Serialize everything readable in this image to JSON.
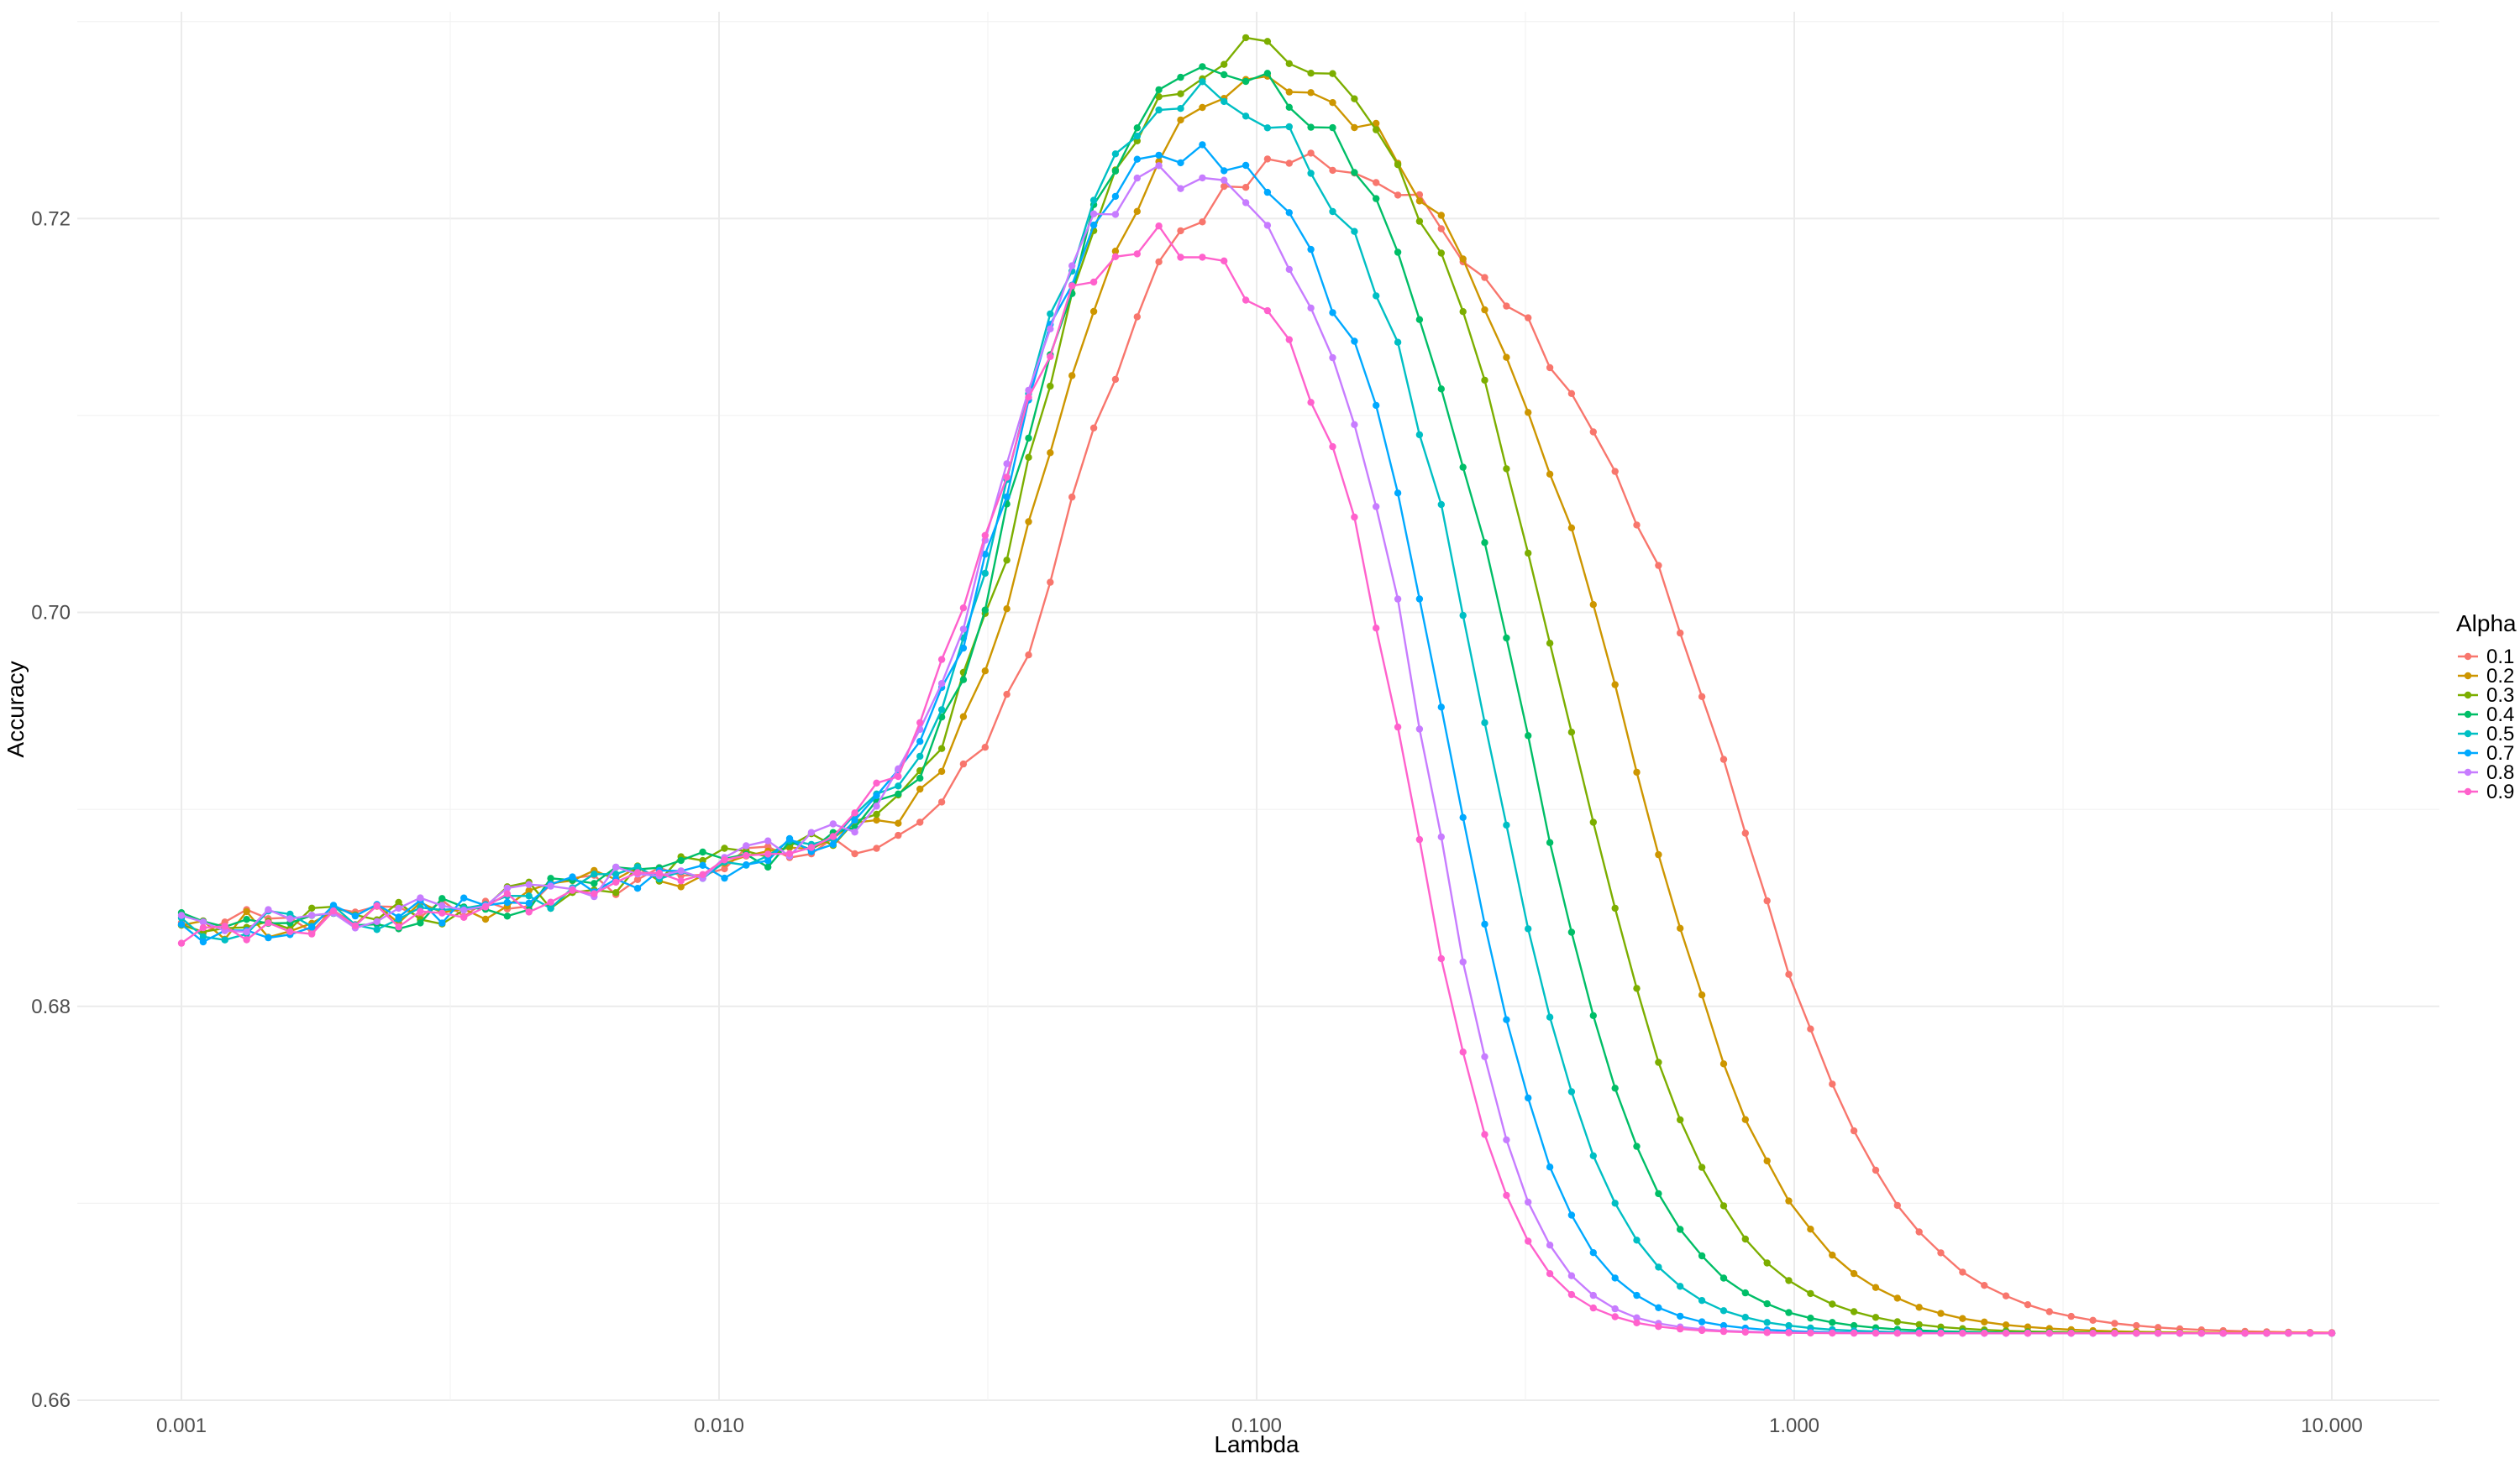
{
  "chart_data": {
    "type": "line",
    "title": "",
    "xlabel": "Lambda",
    "ylabel": "Accuracy",
    "x_scale": "log10",
    "xlim": [
      0.001,
      10
    ],
    "ylim": [
      0.66,
      0.7305
    ],
    "x_ticks": [
      0.001,
      0.01,
      0.1,
      1,
      10
    ],
    "x_tick_labels": [
      "0.001",
      "0.010",
      "0.100",
      "1.000",
      "10.000"
    ],
    "y_ticks": [
      0.66,
      0.68,
      0.7,
      0.72
    ],
    "y_tick_labels": [
      "0.66",
      "0.68",
      "0.70",
      "0.72"
    ],
    "grid": true,
    "legend": {
      "title": "Alpha",
      "position": "right"
    },
    "x_count": 100,
    "series": [
      {
        "name": "0.1",
        "color": "#F8766D",
        "peak": 0.7235,
        "peak_x": 0.12,
        "rise_mid": 0.043,
        "drop_mid": 0.8,
        "drop_width": 0.15
      },
      {
        "name": "0.2",
        "color": "#CD9600",
        "peak": 0.7275,
        "peak_x": 0.11,
        "rise_mid": 0.038,
        "drop_mid": 0.52,
        "drop_width": 0.14
      },
      {
        "name": "0.3",
        "color": "#7CAE00",
        "peak": 0.7295,
        "peak_x": 0.103,
        "rise_mid": 0.036,
        "drop_mid": 0.4,
        "drop_width": 0.13
      },
      {
        "name": "0.4",
        "color": "#00BE67",
        "peak": 0.7285,
        "peak_x": 0.088,
        "rise_mid": 0.035,
        "drop_mid": 0.33,
        "drop_width": 0.12
      },
      {
        "name": "0.5",
        "color": "#00BFC4",
        "peak": 0.7275,
        "peak_x": 0.076,
        "rise_mid": 0.034,
        "drop_mid": 0.28,
        "drop_width": 0.11
      },
      {
        "name": "0.7",
        "color": "#00A9FF",
        "peak": 0.7245,
        "peak_x": 0.065,
        "rise_mid": 0.033,
        "drop_mid": 0.24,
        "drop_width": 0.1
      },
      {
        "name": "0.8",
        "color": "#C77CFF",
        "peak": 0.7235,
        "peak_x": 0.058,
        "rise_mid": 0.032,
        "drop_mid": 0.215,
        "drop_width": 0.09
      },
      {
        "name": "0.9",
        "color": "#FF61CC",
        "peak": 0.7205,
        "peak_x": 0.052,
        "rise_mid": 0.031,
        "drop_mid": 0.2,
        "drop_width": 0.09
      }
    ],
    "plateau_low": 0.6838,
    "plateau_mid": 0.6885,
    "floor": 0.6634
  }
}
